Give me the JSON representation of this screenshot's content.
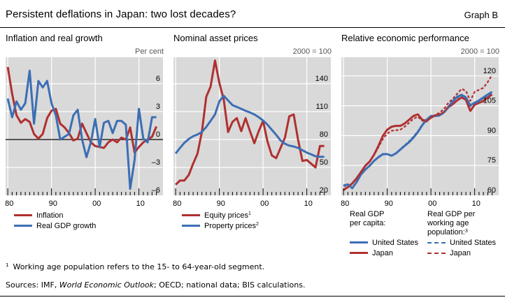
{
  "header": {
    "title": "Persistent deflations in Japan: two lost decades?",
    "graph_id": "Graph B"
  },
  "colors": {
    "red": "#B03030",
    "blue": "#3C6EB4",
    "plot_bg": "#D9D9D9",
    "grid": "#FFFFFF"
  },
  "chart_data": [
    {
      "type": "line",
      "title": "Inflation and real growth",
      "unit_label": "Per cent",
      "x": [
        1980,
        1981,
        1982,
        1983,
        1984,
        1985,
        1986,
        1987,
        1988,
        1989,
        1990,
        1991,
        1992,
        1993,
        1994,
        1995,
        1996,
        1997,
        1998,
        1999,
        2000,
        2001,
        2002,
        2003,
        2004,
        2005,
        2006,
        2007,
        2008,
        2009,
        2010,
        2011,
        2012,
        2013,
        2014
      ],
      "xlim": [
        1979.5,
        2015.5
      ],
      "xticks": [
        1980,
        1990,
        2000,
        2010
      ],
      "xtick_labels": [
        "80",
        "90",
        "00",
        "10"
      ],
      "ylim": [
        -6,
        8.85
      ],
      "yticks": [
        -6,
        -3,
        0,
        3,
        6
      ],
      "ytick_labels": [
        "–6",
        "–3",
        "0",
        "3",
        "6"
      ],
      "zero_line": true,
      "grid": true,
      "series": [
        {
          "name": "Inflation",
          "color": "#B03030",
          "style": "solid",
          "values": [
            7.8,
            4.9,
            2.6,
            1.8,
            2.2,
            1.9,
            0.6,
            0.1,
            0.6,
            2.3,
            3.1,
            3.3,
            1.7,
            1.3,
            0.7,
            -0.1,
            0.1,
            1.7,
            0.7,
            -0.3,
            -0.7,
            -0.8,
            -0.9,
            -0.3,
            0.0,
            -0.3,
            0.2,
            0.0,
            1.3,
            -1.4,
            -0.8,
            -0.3,
            0.0,
            0.3,
            1.4
          ]
        },
        {
          "name": "Real GDP growth",
          "color": "#3C6EB4",
          "style": "solid",
          "values": [
            4.4,
            2.4,
            4.1,
            3.2,
            3.9,
            7.4,
            1.7,
            6.3,
            5.6,
            6.3,
            3.9,
            2.6,
            0.0,
            0.3,
            0.6,
            2.6,
            3.2,
            0.0,
            -1.9,
            -0.3,
            2.2,
            -0.8,
            1.8,
            2.0,
            0.7,
            2.0,
            2.0,
            1.6,
            -5.3,
            -2.2,
            3.3,
            0.1,
            -0.3,
            2.4,
            2.4
          ]
        }
      ]
    },
    {
      "type": "line",
      "title": "Nominal asset prices",
      "unit_label": "2000 = 100",
      "x": [
        1980,
        1981,
        1982,
        1983,
        1984,
        1985,
        1986,
        1987,
        1988,
        1989,
        1990,
        1991,
        1992,
        1993,
        1994,
        1995,
        1996,
        1997,
        1998,
        1999,
        2000,
        2001,
        2002,
        2003,
        2004,
        2005,
        2006,
        2007,
        2008,
        2009,
        2010,
        2011,
        2012,
        2013,
        2014
      ],
      "xlim": [
        1979.5,
        2015.5
      ],
      "xticks": [
        1980,
        1990,
        2000,
        2010
      ],
      "xtick_labels": [
        "80",
        "90",
        "00",
        "10"
      ],
      "ylim": [
        20,
        168.5
      ],
      "yticks": [
        20,
        50,
        80,
        110,
        140
      ],
      "ytick_labels": [
        "20",
        "50",
        "80",
        "110",
        "140"
      ],
      "grid": true,
      "series": [
        {
          "name": "Equity prices",
          "footnote": "1",
          "color": "#B03030",
          "style": "solid",
          "values": [
            31.5,
            36,
            36,
            42,
            54,
            65,
            88,
            126,
            137,
            165,
            141,
            123,
            88,
            99,
            103,
            89,
            103,
            89,
            76,
            89,
            100,
            78,
            63,
            60,
            71,
            82,
            105,
            107,
            80,
            57,
            58,
            54,
            50,
            73,
            73
          ]
        },
        {
          "name": "Property prices",
          "footnote": "2",
          "color": "#3C6EB4",
          "style": "solid",
          "values": [
            65,
            71,
            76.5,
            80.5,
            83.5,
            85.5,
            88,
            93.5,
            100,
            107,
            121,
            127,
            122,
            117,
            115,
            113,
            111,
            109,
            107,
            104,
            100.5,
            96,
            90.5,
            85,
            79,
            75.5,
            73.5,
            72.5,
            71,
            68.5,
            66,
            64,
            62,
            61.5,
            61.5
          ]
        }
      ]
    },
    {
      "type": "line",
      "title": "Relative economic performance",
      "unit_label": "2000 = 100",
      "x": [
        1980,
        1981,
        1982,
        1983,
        1984,
        1985,
        1986,
        1987,
        1988,
        1989,
        1990,
        1991,
        1992,
        1993,
        1994,
        1995,
        1996,
        1997,
        1998,
        1999,
        2000,
        2001,
        2002,
        2003,
        2004,
        2005,
        2006,
        2007,
        2008,
        2009,
        2010,
        2011,
        2012,
        2013,
        2014
      ],
      "xlim": [
        1979.5,
        2015.5
      ],
      "xticks": [
        1980,
        1990,
        2000,
        2010
      ],
      "xtick_labels": [
        "80",
        "90",
        "00",
        "10"
      ],
      "ylim": [
        60,
        129.4
      ],
      "yticks": [
        60,
        75,
        90,
        105,
        120
      ],
      "ytick_labels": [
        "60",
        "75",
        "90",
        "105",
        "120"
      ],
      "grid": true,
      "legend_groups": [
        {
          "heading": "Real GDP per capita:",
          "heading_lines": [
            "Real GDP",
            "per capita:"
          ]
        },
        {
          "heading": "Real GDP per working age population:",
          "heading_lines": [
            "Real GDP per",
            "working age",
            "population:"
          ],
          "footnote": "3"
        }
      ],
      "series": [
        {
          "name": "United States",
          "group": "Real GDP per capita",
          "color": "#3C6EB4",
          "style": "solid",
          "values": [
            64.9,
            65.5,
            63.6,
            66.7,
            70.5,
            73,
            74.9,
            77.4,
            79.2,
            80.7,
            80.7,
            79.9,
            81.1,
            83,
            84.9,
            86.7,
            89,
            91.8,
            95.2,
            98,
            99.9,
            99.9,
            100.3,
            101.8,
            104.5,
            107.4,
            109.5,
            110.5,
            109.2,
            105.2,
            106.5,
            107.7,
            109.2,
            110.7,
            112
          ]
        },
        {
          "name": "Japan",
          "group": "Real GDP per capita",
          "color": "#B03030",
          "style": "solid",
          "values": [
            62.7,
            64.2,
            66,
            68.6,
            71.7,
            74.9,
            77,
            80.5,
            84.9,
            89.9,
            93,
            94.5,
            94.9,
            94.9,
            96.1,
            98,
            99.9,
            100.7,
            98,
            97.4,
            99,
            100.2,
            100.5,
            101.8,
            104.3,
            105.8,
            107.7,
            109.2,
            108,
            102.4,
            105.5,
            106.5,
            107.4,
            109.2,
            110.7
          ]
        },
        {
          "name": "United States",
          "group": "Real GDP per working age population",
          "color": "#3C6EB4",
          "style": "dashed",
          "values": [
            64.5,
            65.2,
            63.8,
            66.8,
            70.3,
            72.8,
            74.8,
            77.2,
            79,
            80.5,
            80.6,
            79.8,
            81.2,
            83.2,
            85.2,
            87.2,
            89.5,
            92.2,
            95.5,
            98.2,
            100,
            99.7,
            100,
            101.5,
            104,
            107,
            109,
            110,
            108.8,
            104.8,
            106.2,
            107.2,
            108.8,
            110.2,
            111.5
          ]
        },
        {
          "name": "Japan",
          "group": "Real GDP per working age population",
          "color": "#B03030",
          "style": "dashed",
          "values": [
            62.5,
            64,
            65.8,
            68.5,
            71.5,
            75,
            77,
            80.3,
            84.2,
            88.4,
            91,
            92.5,
            92.7,
            93,
            94.5,
            96.5,
            98.5,
            99.5,
            97.5,
            97,
            99,
            100.5,
            101.5,
            103.5,
            106.5,
            108.5,
            111,
            113.5,
            112.5,
            107.5,
            112,
            113,
            114,
            117,
            120.5
          ]
        }
      ]
    }
  ],
  "footnotes": {
    "note_marker": "1",
    "note_text": "Working age population refers to the 15- to 64-year-old segment.",
    "sources_prefix": "Sources: IMF, ",
    "sources_italic": "World Economic Outlook",
    "sources_suffix": "; OECD; national data; BIS calculations."
  }
}
